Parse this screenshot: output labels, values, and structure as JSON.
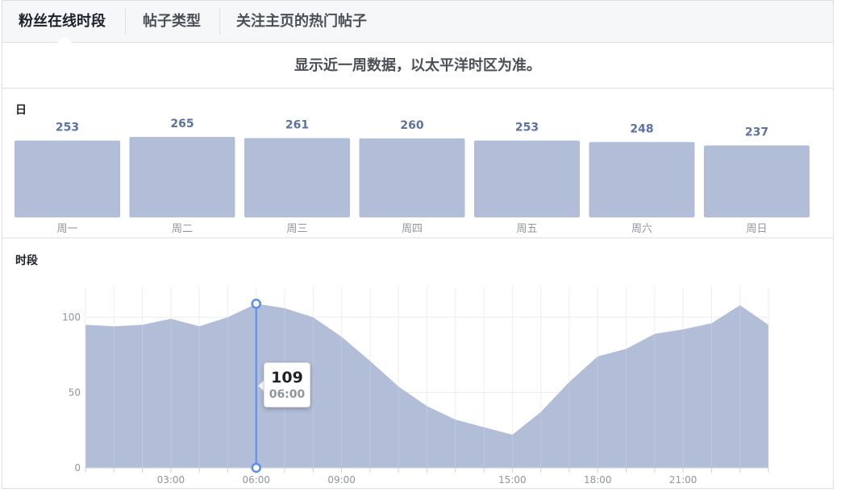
{
  "tabs": [
    {
      "label": "粉丝在线时段",
      "active": true
    },
    {
      "label": "帖子类型",
      "active": false
    },
    {
      "label": "关注主页的热门帖子",
      "active": false
    }
  ],
  "subtitle": "显示近一周数据，以太平洋时区为准。",
  "day_section_label": "日",
  "hour_section_label": "时段",
  "tooltip": {
    "value": "109",
    "time": "06:00"
  },
  "colors": {
    "bar": "#b2bdd7",
    "bar_value_text": "#5b72a3",
    "area": "#b2bdd7",
    "cursor": "#5b8def",
    "axis_text": "#90949c"
  },
  "chart_data": [
    {
      "type": "bar",
      "title": "日",
      "categories": [
        "周一",
        "周二",
        "周三",
        "周四",
        "周五",
        "周六",
        "周日"
      ],
      "values": [
        253,
        265,
        261,
        260,
        253,
        248,
        237
      ],
      "data_labels": [
        "253",
        "265",
        "261",
        "260",
        "253",
        "248",
        "237"
      ],
      "xlabel": "",
      "ylabel": "",
      "grid": false
    },
    {
      "type": "area",
      "title": "时段",
      "x": [
        0,
        1,
        2,
        3,
        4,
        5,
        6,
        7,
        8,
        9,
        10,
        11,
        12,
        13,
        14,
        15,
        16,
        17,
        18,
        19,
        20,
        21,
        22,
        23,
        24
      ],
      "values": [
        95,
        94,
        95,
        99,
        94,
        100,
        109,
        106,
        100,
        87,
        71,
        54,
        41,
        32,
        27,
        22,
        37,
        57,
        74,
        79,
        89,
        92,
        96,
        108,
        95
      ],
      "x_tick_labels": [
        {
          "x": 3,
          "label": "03:00"
        },
        {
          "x": 6,
          "label": "06:00"
        },
        {
          "x": 9,
          "label": "09:00"
        },
        {
          "x": 15,
          "label": "15:00"
        },
        {
          "x": 18,
          "label": "18:00"
        },
        {
          "x": 21,
          "label": "21:00"
        }
      ],
      "y_ticks": [
        0,
        50,
        100
      ],
      "y_tick_labels": [
        "0",
        "50",
        "100"
      ],
      "ylim": [
        0,
        120
      ],
      "xlim": [
        0,
        24
      ],
      "grid": true,
      "highlight": {
        "x": 6,
        "value": 109,
        "label": "06:00"
      }
    }
  ]
}
